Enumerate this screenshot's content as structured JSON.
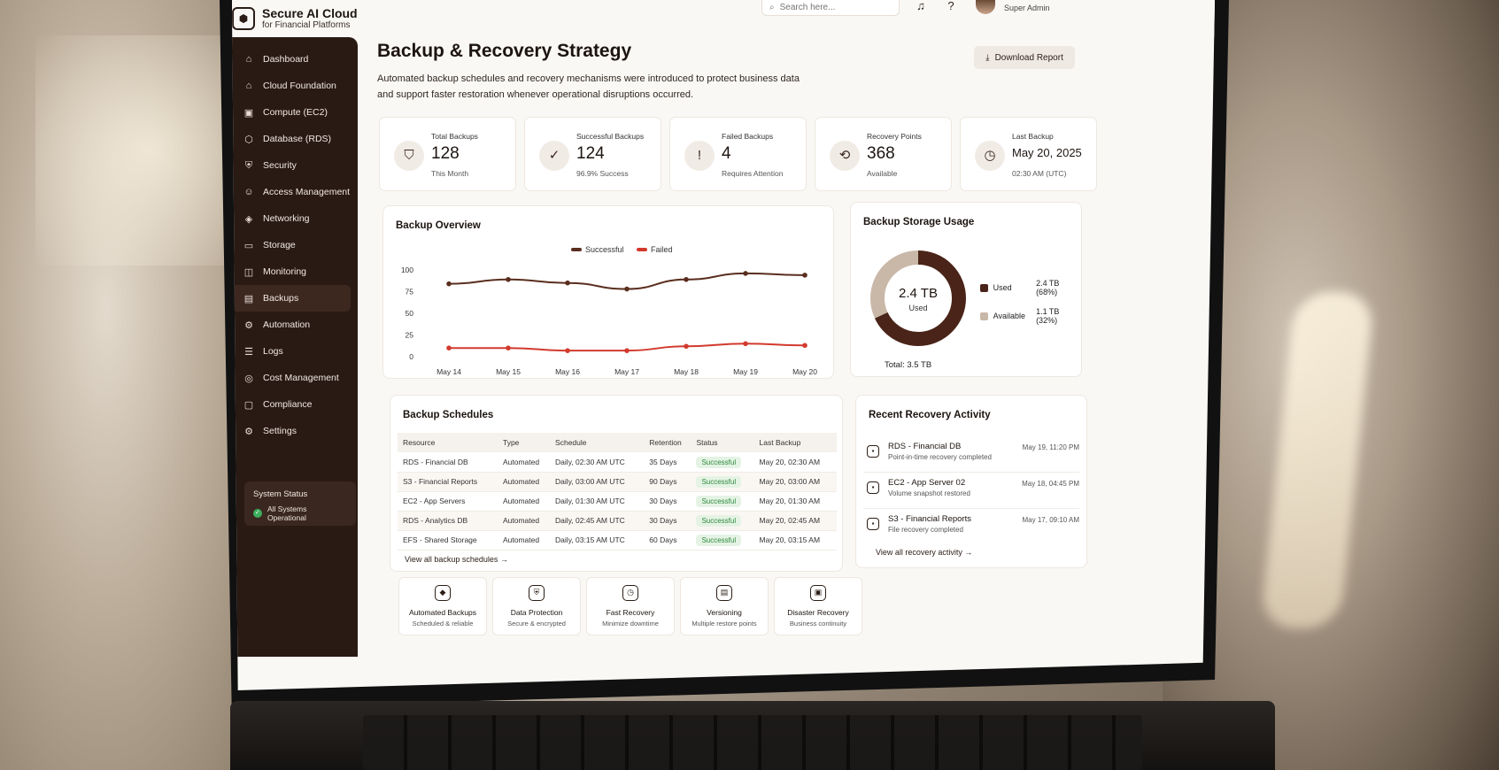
{
  "app": {
    "title": "Secure AI Cloud",
    "subtitle": "for Financial Platforms",
    "logo_icon": "hexagon-logo-icon"
  },
  "topbar": {
    "search_placeholder": "Search here...",
    "role": "Super Admin"
  },
  "sidebar": {
    "items": [
      {
        "label": "Dashboard",
        "icon": "home-icon",
        "glyph": "⌂"
      },
      {
        "label": "Cloud Foundation",
        "icon": "cloud-house-icon",
        "glyph": "⌂"
      },
      {
        "label": "Compute (EC2)",
        "icon": "server-icon",
        "glyph": "▣"
      },
      {
        "label": "Database (RDS)",
        "icon": "database-icon",
        "glyph": "⬡"
      },
      {
        "label": "Security",
        "icon": "shield-icon",
        "glyph": "⛨"
      },
      {
        "label": "Access Management",
        "icon": "users-icon",
        "glyph": "☺"
      },
      {
        "label": "Networking",
        "icon": "network-icon",
        "glyph": "◈"
      },
      {
        "label": "Storage",
        "icon": "storage-icon",
        "glyph": "▭"
      },
      {
        "label": "Monitoring",
        "icon": "monitoring-icon",
        "glyph": "◫"
      },
      {
        "label": "Backups",
        "icon": "backup-icon",
        "glyph": "▤",
        "active": true
      },
      {
        "label": "Automation",
        "icon": "automation-icon",
        "glyph": "⚙"
      },
      {
        "label": "Logs",
        "icon": "logs-icon",
        "glyph": "☰"
      },
      {
        "label": "Cost Management",
        "icon": "cost-icon",
        "glyph": "◎"
      },
      {
        "label": "Compliance",
        "icon": "compliance-icon",
        "glyph": "▢"
      },
      {
        "label": "Settings",
        "icon": "gear-icon",
        "glyph": "⚙"
      }
    ],
    "status": {
      "title": "System Status",
      "text": "All Systems Operational"
    }
  },
  "page": {
    "title": "Backup & Recovery Strategy",
    "description": "Automated backup schedules and recovery mechanisms were introduced to protect business data and support faster restoration whenever operational disruptions occurred.",
    "download_label": "Download Report"
  },
  "stats": [
    {
      "label": "Total Backups",
      "value": "128",
      "sub": "This Month",
      "icon": "backup-shield-icon",
      "glyph": "⛉"
    },
    {
      "label": "Successful Backups",
      "value": "124",
      "sub": "96.9% Success",
      "icon": "success-icon",
      "glyph": "✓"
    },
    {
      "label": "Failed Backups",
      "value": "4",
      "sub": "Requires Attention",
      "icon": "failed-icon",
      "glyph": "!"
    },
    {
      "label": "Recovery Points",
      "value": "368",
      "sub": "Available",
      "icon": "recovery-points-icon",
      "glyph": "⟲"
    },
    {
      "label": "Last Backup",
      "value": "May 20, 2025",
      "sub": "02:30 AM (UTC)",
      "icon": "clock-icon",
      "glyph": "◷"
    }
  ],
  "backup_overview": {
    "title": "Backup Overview"
  },
  "chart_data": {
    "type": "line",
    "categories": [
      "May 14",
      "May 15",
      "May 16",
      "May 17",
      "May 18",
      "May 19",
      "May 20"
    ],
    "series": [
      {
        "name": "Successful",
        "values": [
          84,
          89,
          85,
          78,
          89,
          96,
          94
        ],
        "color": "#5a2e1e"
      },
      {
        "name": "Failed",
        "values": [
          10,
          10,
          7,
          7,
          12,
          15,
          13
        ],
        "color": "#d23a2e"
      }
    ],
    "yticks": [
      "100",
      "75",
      "50",
      "25",
      "0"
    ],
    "ylim": [
      0,
      100
    ],
    "legend": "top-center",
    "grid": false
  },
  "storage": {
    "title": "Backup Storage Usage",
    "center_value": "2.4 TB",
    "center_label": "Used",
    "total": "Total: 3.5 TB",
    "segments": [
      {
        "label": "Used",
        "value": "2.4 TB (68%)",
        "fraction": 0.68,
        "color": "#4a2418"
      },
      {
        "label": "Available",
        "value": "1.1 TB (32%)",
        "fraction": 0.32,
        "color": "#c9b8a8"
      }
    ]
  },
  "schedules": {
    "title": "Backup Schedules",
    "headers": [
      "Resource",
      "Type",
      "Schedule",
      "Retention",
      "Status",
      "Last Backup"
    ],
    "rows": [
      [
        "RDS - Financial DB",
        "Automated",
        "Daily, 02:30 AM UTC",
        "35 Days",
        "Successful",
        "May 20, 02:30 AM"
      ],
      [
        "S3 - Financial Reports",
        "Automated",
        "Daily, 03:00 AM UTC",
        "90 Days",
        "Successful",
        "May 20, 03:00 AM"
      ],
      [
        "EC2 - App Servers",
        "Automated",
        "Daily, 01:30 AM UTC",
        "30 Days",
        "Successful",
        "May 20, 01:30 AM"
      ],
      [
        "RDS - Analytics DB",
        "Automated",
        "Daily, 02:45 AM UTC",
        "30 Days",
        "Successful",
        "May 20, 02:45 AM"
      ],
      [
        "EFS - Shared Storage",
        "Automated",
        "Daily, 03:15 AM UTC",
        "60 Days",
        "Successful",
        "May 20, 03:15 AM"
      ]
    ],
    "link": "View all backup schedules →"
  },
  "recovery": {
    "title": "Recent Recovery Activity",
    "items": [
      {
        "title": "RDS - Financial DB",
        "desc": "Point-in-time recovery completed",
        "time": "May 19, 11:20 PM",
        "icon": "database-icon"
      },
      {
        "title": "EC2 - App Server 02",
        "desc": "Volume snapshot restored",
        "time": "May 18, 04:45 PM",
        "icon": "server-icon"
      },
      {
        "title": "S3 - Financial Reports",
        "desc": "File recovery completed",
        "time": "May 17, 09:10 AM",
        "icon": "file-icon"
      }
    ],
    "link": "View all recovery activity →"
  },
  "features": [
    {
      "title": "Automated Backups",
      "sub": "Scheduled & reliable",
      "icon": "automated-backup-icon",
      "glyph": "◆"
    },
    {
      "title": "Data Protection",
      "sub": "Secure & encrypted",
      "icon": "shield-icon",
      "glyph": "⛨"
    },
    {
      "title": "Fast Recovery",
      "sub": "Minimize downtime",
      "icon": "timer-icon",
      "glyph": "◷"
    },
    {
      "title": "Versioning",
      "sub": "Multiple restore points",
      "icon": "versioning-icon",
      "glyph": "▤"
    },
    {
      "title": "Disaster Recovery",
      "sub": "Business continuity",
      "icon": "disaster-recovery-icon",
      "glyph": "▣"
    }
  ]
}
